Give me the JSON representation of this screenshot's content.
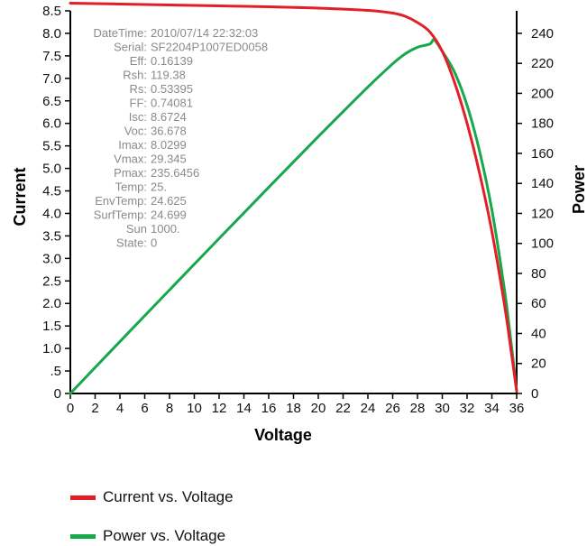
{
  "chart_data": {
    "type": "line",
    "xlabel": "Voltage",
    "ylabel_left": "Current",
    "ylabel_right": "Power",
    "xlim": [
      0,
      36
    ],
    "ylim_left": [
      0,
      8.5
    ],
    "ylim_right": [
      0,
      255
    ],
    "x_ticks": [
      0,
      2,
      4,
      6,
      8,
      10,
      12,
      14,
      16,
      18,
      20,
      22,
      24,
      26,
      28,
      30,
      32,
      34,
      36
    ],
    "x_tick_labels": [
      "0",
      "2",
      "4",
      "6",
      "8",
      "10",
      "12",
      "14",
      "16",
      "18",
      "20",
      "22",
      "24",
      "26",
      "28",
      "30",
      "32",
      "34",
      "36"
    ],
    "y_left_ticks": [
      0,
      0.5,
      1.0,
      1.5,
      2.0,
      2.5,
      3.0,
      3.5,
      4.0,
      4.5,
      5.0,
      5.5,
      6.0,
      6.5,
      7.0,
      7.5,
      8.0,
      8.5
    ],
    "y_left_tick_labels": [
      "0",
      ".5",
      "1.0",
      "1.5",
      "2.0",
      "2.5",
      "3.0",
      "3.5",
      "4.0",
      "4.5",
      "5.0",
      "5.5",
      "6.0",
      "6.5",
      "7.0",
      "7.5",
      "8.0",
      "8.5"
    ],
    "y_right_ticks": [
      0,
      20,
      40,
      60,
      80,
      100,
      120,
      140,
      160,
      180,
      200,
      220,
      240
    ],
    "y_right_tick_labels": [
      "0",
      "20",
      "40",
      "60",
      "80",
      "100",
      "120",
      "140",
      "160",
      "180",
      "200",
      "220",
      "240"
    ],
    "grid": false,
    "legend_position": "bottom-left",
    "series": [
      {
        "name": "Current vs. Voltage",
        "axis": "left",
        "color": "#e41e26",
        "x": [
          0,
          4,
          8,
          12,
          16,
          20,
          24,
          26,
          27,
          28,
          29,
          30,
          31,
          32,
          33,
          34,
          35,
          35.5,
          36
        ],
        "y": [
          8.67,
          8.65,
          8.63,
          8.61,
          8.59,
          8.56,
          8.51,
          8.45,
          8.38,
          8.24,
          8.03,
          7.6,
          6.9,
          6.0,
          4.9,
          3.6,
          2.0,
          1.05,
          0.05
        ]
      },
      {
        "name": "Power vs. Voltage",
        "axis": "right",
        "color": "#16a84b",
        "x": [
          0,
          4,
          8,
          12,
          16,
          20,
          24,
          26,
          27,
          28,
          29,
          29.35,
          30,
          31,
          32,
          33,
          34,
          35,
          35.5,
          36
        ],
        "y": [
          0,
          34.6,
          69.0,
          103.3,
          137.4,
          171.2,
          204.2,
          219.7,
          226.3,
          230.7,
          232.9,
          235.6,
          228.0,
          213.9,
          192.0,
          161.7,
          122.4,
          70.0,
          37.3,
          1.8
        ]
      }
    ],
    "annotations": [
      {
        "label": "DateTime:",
        "value": "2010/07/14 22:32:03"
      },
      {
        "label": "Serial:",
        "value": "SF2204P1007ED0058"
      },
      {
        "label": "Eff:",
        "value": "0.16139"
      },
      {
        "label": "Rsh:",
        "value": "119.38"
      },
      {
        "label": "Rs:",
        "value": "0.53395"
      },
      {
        "label": "FF:",
        "value": "0.74081"
      },
      {
        "label": "Isc:",
        "value": "8.6724"
      },
      {
        "label": "Voc:",
        "value": "36.678"
      },
      {
        "label": "Imax:",
        "value": "8.0299"
      },
      {
        "label": "Vmax:",
        "value": "29.345"
      },
      {
        "label": "Pmax:",
        "value": "235.6456"
      },
      {
        "label": "Temp:",
        "value": "25."
      },
      {
        "label": "EnvTemp:",
        "value": "24.625"
      },
      {
        "label": "SurfTemp:",
        "value": "24.699"
      },
      {
        "label": "Sun",
        "value": "1000."
      },
      {
        "label": "State:",
        "value": "0"
      }
    ]
  }
}
